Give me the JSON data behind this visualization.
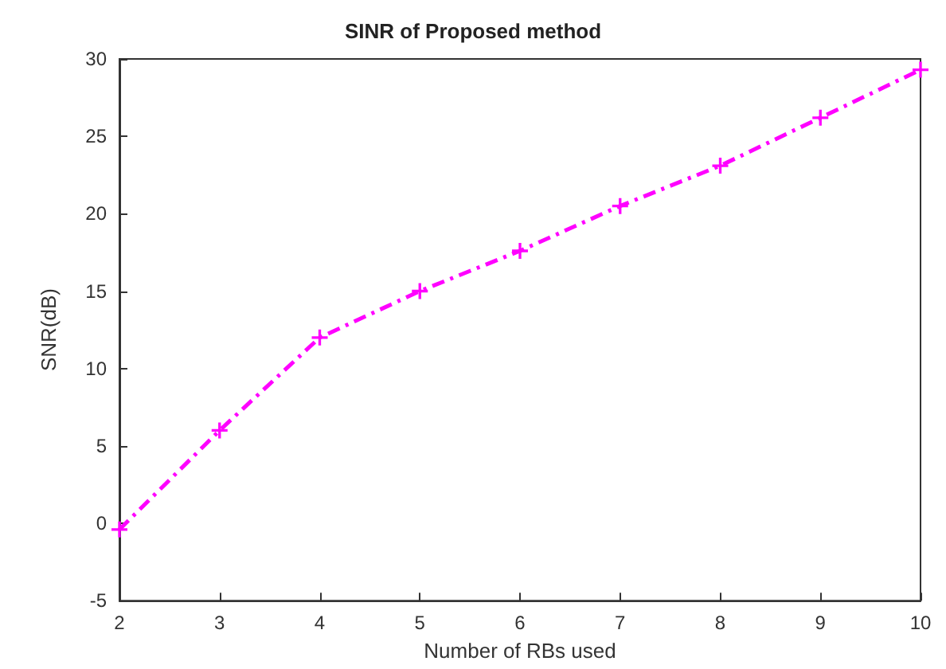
{
  "chart_data": {
    "type": "line",
    "title": "SINR of Proposed method",
    "xlabel": "Number of RBs used",
    "ylabel": "SNR(dB)",
    "x": [
      2,
      3,
      4,
      5,
      6,
      7,
      8,
      9,
      10
    ],
    "series": [
      {
        "color": "#ff00ff",
        "values": [
          -0.4,
          6,
          12,
          15,
          17.6,
          20.5,
          23.1,
          26.2,
          29.3
        ]
      }
    ],
    "xlim": [
      2,
      10
    ],
    "xticks": [
      2,
      3,
      4,
      5,
      6,
      7,
      8,
      9,
      10
    ],
    "ylim": [
      -5,
      30
    ],
    "yticks": [
      -5,
      0,
      5,
      10,
      15,
      20,
      25,
      30
    ],
    "marker": "cross",
    "line_style": "dashed"
  }
}
